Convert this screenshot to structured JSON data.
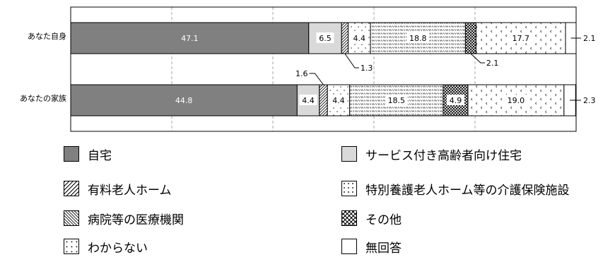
{
  "colors": {
    "jitaku": "#808080",
    "sakoju": "#d9d9d9",
    "yuryo": "#ffffff",
    "kaigo": "#ffffff",
    "byoin": "#ffffff",
    "sonota": "#ffffff",
    "wakaranai": "#ffffff",
    "muk": "#ffffff",
    "grid": "#a6a6a6",
    "border": "#000000"
  },
  "chart_data": {
    "type": "bar",
    "orientation": "horizontal",
    "stacked": true,
    "percent": true,
    "categories": [
      "あなた自身",
      "あなたの家族"
    ],
    "series": [
      {
        "key": "jitaku",
        "name": "自宅",
        "values": [
          47.1,
          44.8
        ],
        "pattern": "solid"
      },
      {
        "key": "sakoju",
        "name": "サービス付き高齢者向け住宅",
        "values": [
          6.5,
          4.4
        ],
        "pattern": "solid"
      },
      {
        "key": "yuryo",
        "name": "有料老人ホーム",
        "values": [
          1.3,
          1.6
        ],
        "pattern": "diagonal"
      },
      {
        "key": "kaigo",
        "name": "特別養護老人ホーム等の介護保険施設",
        "values": [
          4.4,
          4.4
        ],
        "pattern": "dots"
      },
      {
        "key": "byoin",
        "name": "病院等の医療機関",
        "values": [
          18.8,
          18.5
        ],
        "pattern": "dashes"
      },
      {
        "key": "sonota",
        "name": "その他",
        "values": [
          2.1,
          4.9
        ],
        "pattern": "crosshatch"
      },
      {
        "key": "wakaranai",
        "name": "わからない",
        "values": [
          17.7,
          19.0
        ],
        "pattern": "chevrons"
      },
      {
        "key": "muk",
        "name": "無回答",
        "values": [
          2.1,
          2.3
        ],
        "pattern": "blank"
      }
    ],
    "data_labels": [
      [
        "47.1",
        "6.5",
        "1.3",
        "4.4",
        "18.8",
        "2.1",
        "17.7",
        "2.1"
      ],
      [
        "44.8",
        "4.4",
        "1.6",
        "4.4",
        "18.5",
        "4.9",
        "19.0",
        "2.3"
      ]
    ],
    "x_ticks": [
      "0%",
      "20%",
      "40%",
      "60%",
      "80%",
      "100%"
    ],
    "xlim": [
      0,
      100
    ],
    "grid": "vertical dashed",
    "legend_position": "bottom"
  },
  "legend": {
    "items": [
      {
        "key": "jitaku",
        "label": "自宅"
      },
      {
        "key": "sakoju",
        "label": "サービス付き高齢者向け住宅"
      },
      {
        "key": "yuryo",
        "label": "有料老人ホーム"
      },
      {
        "key": "kaigo",
        "label": "特別養護老人ホーム等の介護保険施設"
      },
      {
        "key": "byoin",
        "label": "病院等の医療機関"
      },
      {
        "key": "sonota",
        "label": "その他"
      },
      {
        "key": "wakaranai",
        "label": "わからない"
      },
      {
        "key": "muk",
        "label": "無回答"
      }
    ]
  }
}
